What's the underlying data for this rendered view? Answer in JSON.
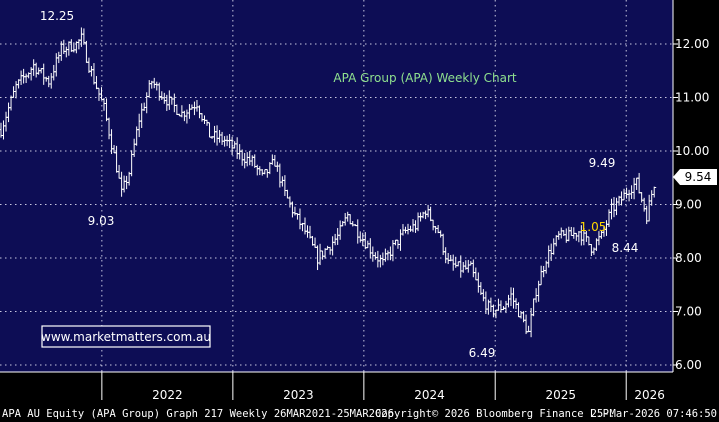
{
  "chart_data": {
    "type": "bar",
    "style": "weekly OHLC price bars",
    "title": "APA Group (APA) Weekly Chart",
    "ylim": [
      5.9,
      12.6
    ],
    "y_ticks": [
      "6.00",
      "7.00",
      "8.00",
      "9.00",
      "10.00",
      "11.00",
      "12.00"
    ],
    "x_labels": [
      "2022",
      "2023",
      "2024",
      "2025",
      "2026"
    ],
    "last_price": "9.54",
    "grid": true,
    "annotations": [
      "12.25",
      "9.03",
      "6.49",
      "9.49",
      "1.05",
      "8.44"
    ],
    "watermark": "www.marketmatters.com.au",
    "x_range": [
      "2021-03-26",
      "2026-03-25"
    ],
    "series": [
      {
        "close_path": [
          [
            "2021-03-26",
            10.4
          ],
          [
            "2021-05-07",
            11.2
          ],
          [
            "2021-06-25",
            11.6
          ],
          [
            "2021-08-06",
            11.3
          ],
          [
            "2021-09-10",
            11.9
          ],
          [
            "2021-10-22",
            12.0
          ],
          [
            "2021-11-05",
            12.1
          ],
          [
            "2021-11-26",
            11.6
          ],
          [
            "2022-01-07",
            10.8
          ],
          [
            "2022-02-11",
            9.7
          ],
          [
            "2022-02-25",
            9.2
          ],
          [
            "2022-03-18",
            9.6
          ],
          [
            "2022-04-15",
            10.6
          ],
          [
            "2022-05-20",
            11.3
          ],
          [
            "2022-06-24",
            11.0
          ],
          [
            "2022-08-12",
            10.7
          ],
          [
            "2022-09-23",
            10.9
          ],
          [
            "2022-10-28",
            10.3
          ],
          [
            "2022-12-09",
            10.2
          ],
          [
            "2023-01-27",
            9.9
          ],
          [
            "2023-02-24",
            9.8
          ],
          [
            "2023-03-24",
            9.5
          ],
          [
            "2023-04-28",
            9.8
          ],
          [
            "2023-05-26",
            9.2
          ],
          [
            "2023-06-23",
            8.8
          ],
          [
            "2023-07-21",
            8.5
          ],
          [
            "2023-08-25",
            8.0
          ],
          [
            "2023-09-22",
            8.2
          ],
          [
            "2023-10-20",
            8.4
          ],
          [
            "2023-11-17",
            8.8
          ],
          [
            "2023-12-15",
            8.5
          ],
          [
            "2024-01-26",
            8.1
          ],
          [
            "2024-02-23",
            7.9
          ],
          [
            "2024-03-22",
            8.2
          ],
          [
            "2024-04-26",
            8.5
          ],
          [
            "2024-05-24",
            8.6
          ],
          [
            "2024-06-21",
            8.9
          ],
          [
            "2024-07-26",
            8.5
          ],
          [
            "2024-08-23",
            7.9
          ],
          [
            "2024-09-27",
            7.8
          ],
          [
            "2024-10-25",
            7.8
          ],
          [
            "2024-11-22",
            7.3
          ],
          [
            "2024-12-20",
            7.0
          ],
          [
            "2025-01-24",
            7.1
          ],
          [
            "2025-02-14",
            7.3
          ],
          [
            "2025-03-14",
            6.9
          ],
          [
            "2025-04-04",
            6.6
          ],
          [
            "2025-04-25",
            7.4
          ],
          [
            "2025-05-23",
            8.0
          ],
          [
            "2025-06-27",
            8.4
          ],
          [
            "2025-07-25",
            8.4
          ],
          [
            "2025-08-22",
            8.5
          ],
          [
            "2025-09-26",
            8.2
          ],
          [
            "2025-10-24",
            8.4
          ],
          [
            "2025-11-21",
            8.9
          ],
          [
            "2025-12-19",
            9.1
          ],
          [
            "2026-01-09",
            9.3
          ],
          [
            "2026-01-30",
            9.4
          ],
          [
            "2026-02-13",
            9.1
          ],
          [
            "2026-02-27",
            8.8
          ],
          [
            "2026-03-13",
            9.2
          ],
          [
            "2026-03-25",
            9.54
          ]
        ]
      }
    ]
  },
  "footer": {
    "left": "APA AU Equity (APA Group) Graph 217 Weekly 26MAR2021-25MAR2026",
    "middle": "Copyright© 2026 Bloomberg Finance L.P.",
    "right": "25-Mar-2026 07:46:50"
  },
  "colors": {
    "background": "#000000",
    "plot_background": "#0d0d55",
    "bars": "#ffffff",
    "grid": "#c8c8e0",
    "title": "#8fe08f",
    "highlight": "#ffd700",
    "watermark_border": "#ffffff",
    "watermark_text": "#ffffff"
  }
}
